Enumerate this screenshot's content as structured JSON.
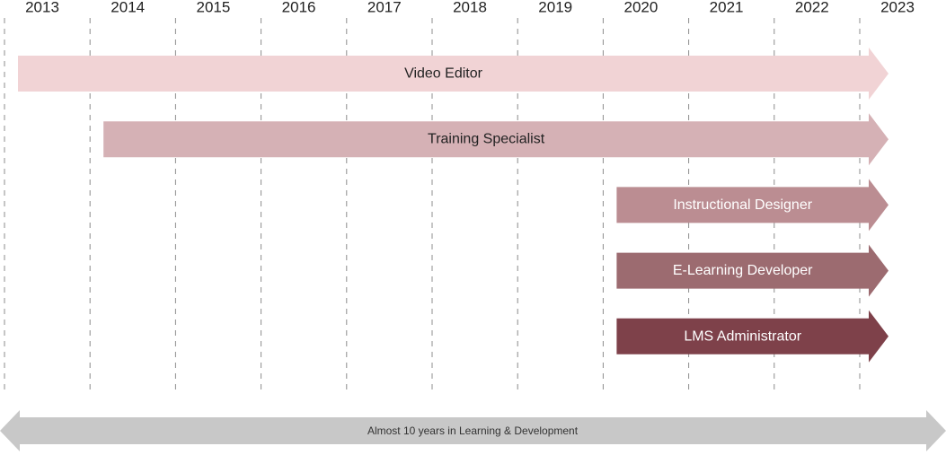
{
  "years": [
    "2013",
    "2014",
    "2015",
    "2016",
    "2017",
    "2018",
    "2019",
    "2020",
    "2021",
    "2022",
    "2023"
  ],
  "roles": [
    {
      "label": "Video Editor",
      "start_year": 2013,
      "end_year": 2023,
      "color": "#f1d3d5",
      "text_color": "#222222"
    },
    {
      "label": "Training Specialist",
      "start_year": 2014,
      "end_year": 2023,
      "color": "#d5b1b5",
      "text_color": "#222222"
    },
    {
      "label": "Instructional Designer",
      "start_year": 2020,
      "end_year": 2023,
      "color": "#bb8d92",
      "text_color": "#ffffff"
    },
    {
      "label": "E-Learning Developer",
      "start_year": 2020,
      "end_year": 2023,
      "color": "#9c6b70",
      "text_color": "#ffffff"
    },
    {
      "label": "LMS Administrator",
      "start_year": 2020,
      "end_year": 2023,
      "color": "#7e414a",
      "text_color": "#ffffff"
    }
  ],
  "footer": {
    "label": "Almost 10 years in Learning & Development",
    "color": "#c8c8c8"
  },
  "gridline_color": "#8c8c8c"
}
